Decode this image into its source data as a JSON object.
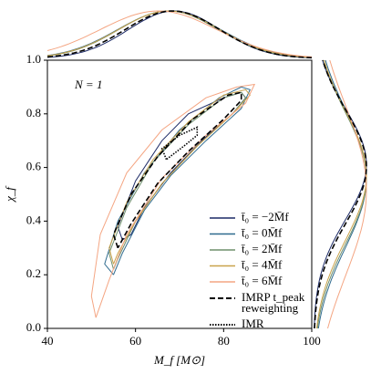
{
  "chart_data": {
    "type": "contour",
    "annotation": "N = 1",
    "xlabel": "M_f [M⊙]",
    "ylabel": "χ_f",
    "xlim": [
      40,
      100
    ],
    "ylim": [
      0,
      1
    ],
    "xticks": [
      40,
      60,
      80,
      100
    ],
    "yticks": [
      {
        "value": 0,
        "label": "0.0"
      },
      0.2,
      0.4,
      0.6,
      0.8,
      {
        "value": 1,
        "label": "1.0"
      }
    ],
    "series": [
      {
        "name": "t̄₀ = −2M̄f",
        "color": "#1c2a66",
        "linestyle": "solid",
        "x": [
          57,
          56,
          60,
          66,
          72,
          80,
          84,
          85,
          82,
          75,
          68,
          62,
          59,
          57
        ],
        "y": [
          0.33,
          0.38,
          0.55,
          0.7,
          0.8,
          0.86,
          0.88,
          0.86,
          0.8,
          0.7,
          0.58,
          0.45,
          0.35,
          0.33
        ]
      },
      {
        "name": "t̄₀ = 0M̄f",
        "color": "#2e6a8e",
        "linestyle": "solid",
        "x": [
          55,
          53,
          56,
          62,
          70,
          79,
          84,
          86,
          84,
          76,
          68,
          62,
          57,
          55
        ],
        "y": [
          0.2,
          0.24,
          0.4,
          0.58,
          0.74,
          0.86,
          0.9,
          0.89,
          0.82,
          0.7,
          0.57,
          0.44,
          0.28,
          0.2
        ]
      },
      {
        "name": "t̄₀ = 2M̄f",
        "color": "#6f8f6c",
        "linestyle": "solid",
        "x": [
          55,
          54,
          58,
          64,
          72,
          80,
          84,
          85,
          82,
          74,
          66,
          60,
          56,
          55
        ],
        "y": [
          0.22,
          0.28,
          0.45,
          0.62,
          0.76,
          0.86,
          0.88,
          0.86,
          0.8,
          0.68,
          0.54,
          0.4,
          0.26,
          0.22
        ]
      },
      {
        "name": "t̄₀ = 4M̄f",
        "color": "#c9a24a",
        "linestyle": "solid",
        "x": [
          55,
          54,
          58,
          64,
          72,
          80,
          85,
          86,
          82,
          74,
          66,
          60,
          56,
          55
        ],
        "y": [
          0.24,
          0.3,
          0.47,
          0.63,
          0.77,
          0.87,
          0.89,
          0.87,
          0.8,
          0.68,
          0.54,
          0.4,
          0.28,
          0.24
        ]
      },
      {
        "name": "t̄₀ = 6M̄f",
        "color": "#f4a582",
        "linestyle": "solid",
        "x": [
          51,
          50,
          52,
          58,
          66,
          76,
          83,
          87,
          85,
          76,
          66,
          58,
          54,
          51
        ],
        "y": [
          0.04,
          0.12,
          0.35,
          0.58,
          0.74,
          0.86,
          0.9,
          0.91,
          0.84,
          0.72,
          0.56,
          0.35,
          0.18,
          0.04
        ]
      },
      {
        "name": [
          "IMRP t_peak",
          "reweighting"
        ],
        "color": "#000000",
        "linestyle": "dashed",
        "x": [
          56,
          55,
          59,
          65,
          73,
          81,
          84,
          84,
          80,
          72,
          65,
          59,
          56
        ],
        "y": [
          0.3,
          0.35,
          0.5,
          0.64,
          0.78,
          0.87,
          0.88,
          0.85,
          0.78,
          0.66,
          0.54,
          0.39,
          0.3
        ]
      },
      {
        "name": "IMR",
        "color": "#000000",
        "linestyle": "dotted",
        "x": [
          67,
          66,
          70,
          74,
          74,
          71,
          67
        ],
        "y": [
          0.63,
          0.67,
          0.72,
          0.75,
          0.72,
          0.68,
          0.63
        ]
      }
    ]
  }
}
